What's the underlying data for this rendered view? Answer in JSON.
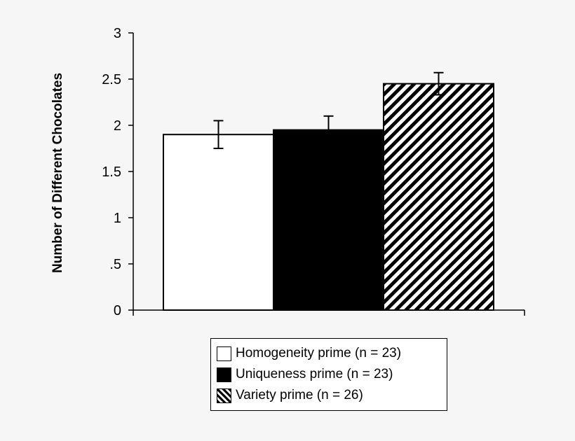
{
  "chart_data": {
    "type": "bar",
    "ylabel": "Number of Different Chocolates",
    "ylim": [
      0,
      3
    ],
    "yticks": [
      "0",
      ".5",
      "1",
      "1.5",
      "2",
      "2.5",
      "3"
    ],
    "yticks_values": [
      0,
      0.5,
      1,
      1.5,
      2,
      2.5,
      3
    ],
    "legend_placement": "bottom",
    "series": [
      {
        "name": "Homogeneity prime (n = 23)",
        "value": 1.9,
        "error": 0.15,
        "fill": "#ffffff"
      },
      {
        "name": "Uniqueness prime (n = 23)",
        "value": 1.95,
        "error": 0.15,
        "fill": "#000000"
      },
      {
        "name": "Variety prime (n = 26)",
        "value": 2.45,
        "error": 0.12,
        "fill": "hatch"
      }
    ]
  }
}
